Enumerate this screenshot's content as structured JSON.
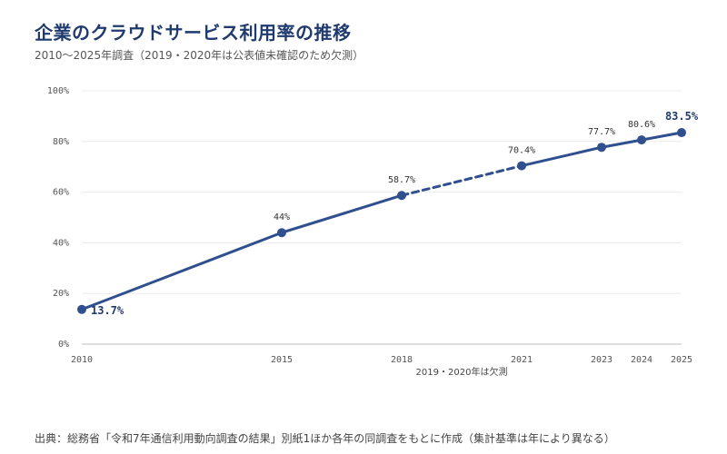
{
  "title": "企業のクラウドサービス利用率の推移",
  "subtitle": "2010〜2025年調査（2019・2020年は公表値未確認のため欠測）",
  "source": "出典：総務省「令和7年通信利用動向調査の結果」別紙1ほか各年の同調査をもとに作成（集計基準は年により異なる）",
  "chart_data": {
    "type": "line",
    "title": "企業のクラウドサービス利用率の推移",
    "xlabel": "",
    "ylabel": "",
    "x": [
      2010,
      2015,
      2018,
      2021,
      2023,
      2024,
      2025
    ],
    "x_tick_labels": [
      "2010",
      "2015",
      "2018",
      "2021",
      "2023",
      "2024",
      "2025"
    ],
    "values": [
      13.7,
      44,
      58.7,
      70.4,
      77.7,
      80.6,
      83.5
    ],
    "data_labels": [
      "13.7%",
      "44%",
      "58.7%",
      "70.4%",
      "77.7%",
      "80.6%",
      "83.5%"
    ],
    "emphasized_points": [
      0,
      6
    ],
    "dashed_segment": [
      2018,
      2021
    ],
    "gap_note": "2019・2020年は欠測",
    "xlim": [
      2010,
      2025
    ],
    "ylim": [
      0,
      100
    ],
    "y_ticks": [
      0,
      20,
      40,
      60,
      80,
      100
    ],
    "y_tick_labels": [
      "0%",
      "20%",
      "40%",
      "60%",
      "80%",
      "100%"
    ],
    "grid": true,
    "legend": "none",
    "color": "#2f4f8f"
  }
}
